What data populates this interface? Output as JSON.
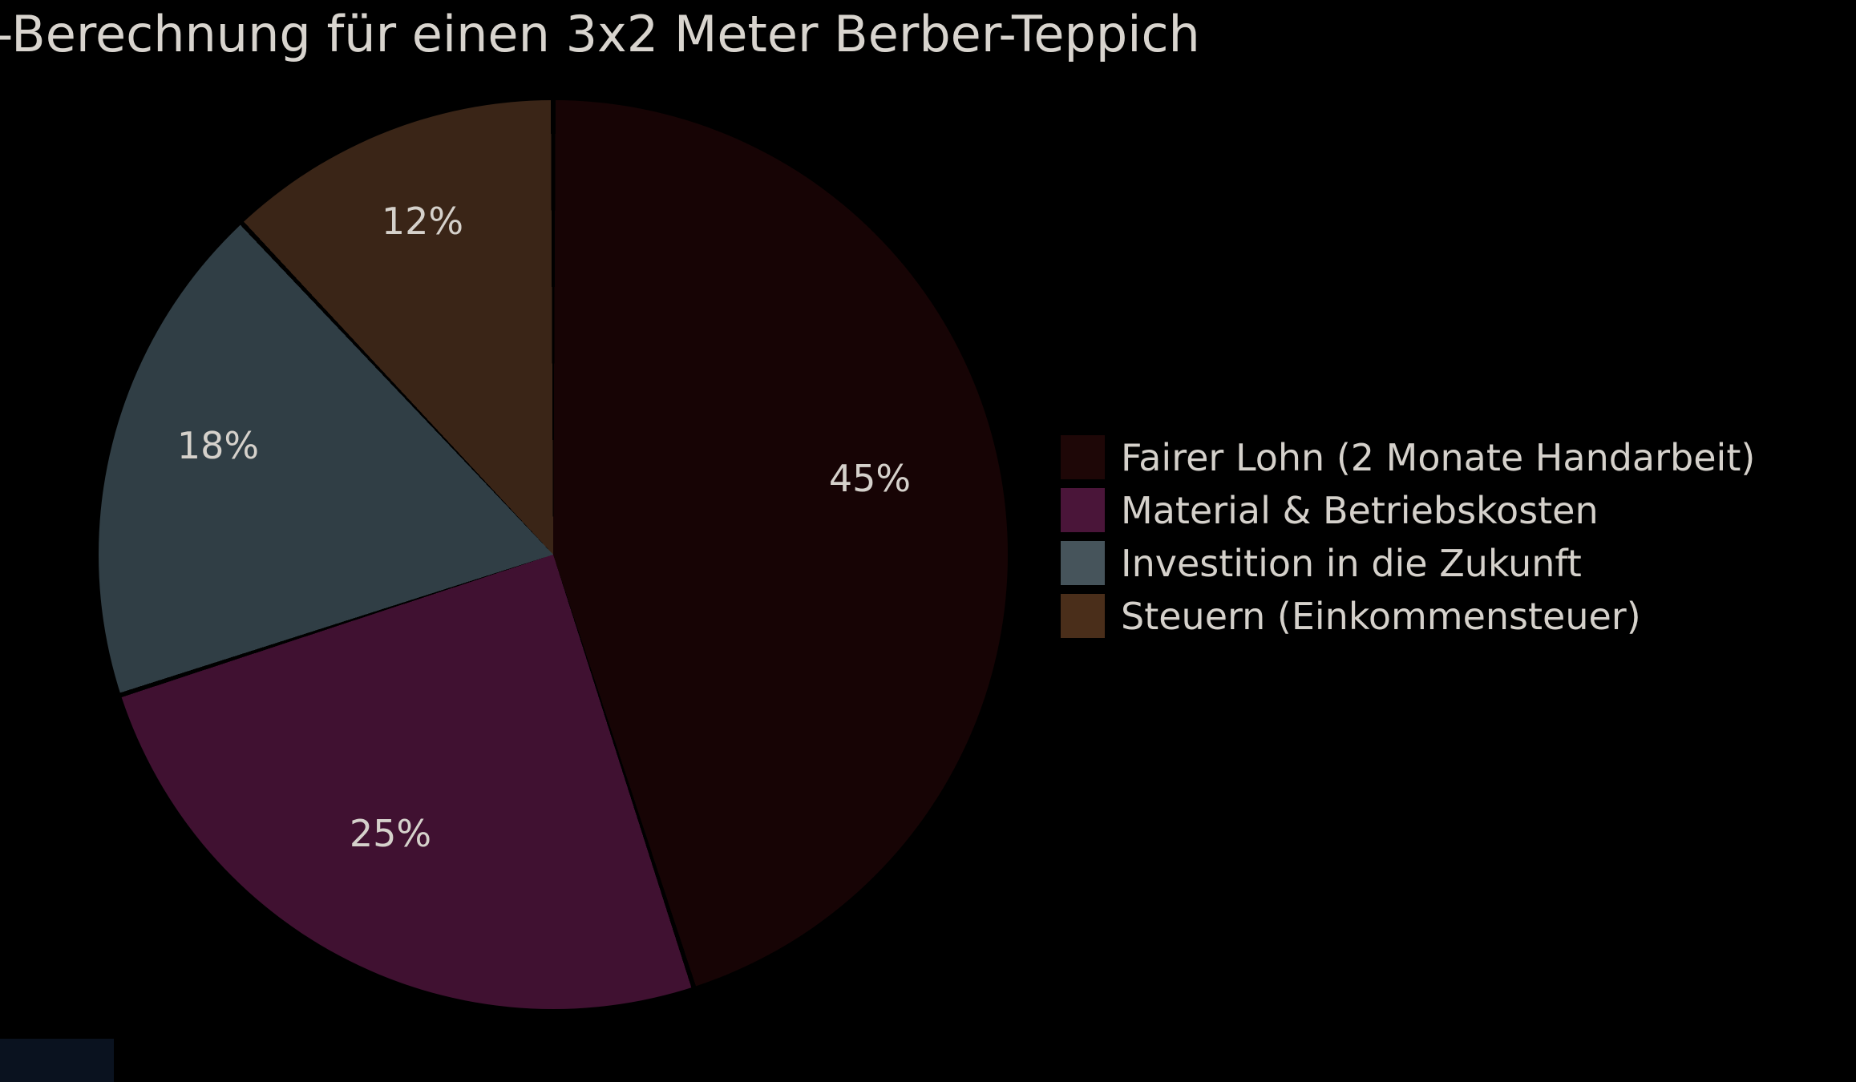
{
  "figure": {
    "background": "#000000",
    "text_color": "#d6d2cc"
  },
  "chart_data": {
    "type": "pie",
    "title": "-Berechnung für einen 3x2 Meter Berber-Teppich",
    "start_angle": "top",
    "direction": "clockwise",
    "legend_position": "center-right",
    "separator_color": "#000000",
    "slices": [
      {
        "label": "Fairer Lohn (2 Monate Handarbeit)",
        "value_pct": 45,
        "pct_label": "45%",
        "color": "#170405",
        "legend_swatch_color": "#1e0707"
      },
      {
        "label": "Material & Betriebskosten",
        "value_pct": 25,
        "pct_label": "25%",
        "color": "#401131",
        "legend_swatch_color": "#4a1539"
      },
      {
        "label": "Investition in die Zukunft",
        "value_pct": 18,
        "pct_label": "18%",
        "color": "#303e45",
        "legend_swatch_color": "#46545b"
      },
      {
        "label": "Steuern (Einkommensteuer)",
        "value_pct": 12,
        "pct_label": "12%",
        "color": "#3a2517",
        "legend_swatch_color": "#4a2e1a"
      }
    ]
  }
}
